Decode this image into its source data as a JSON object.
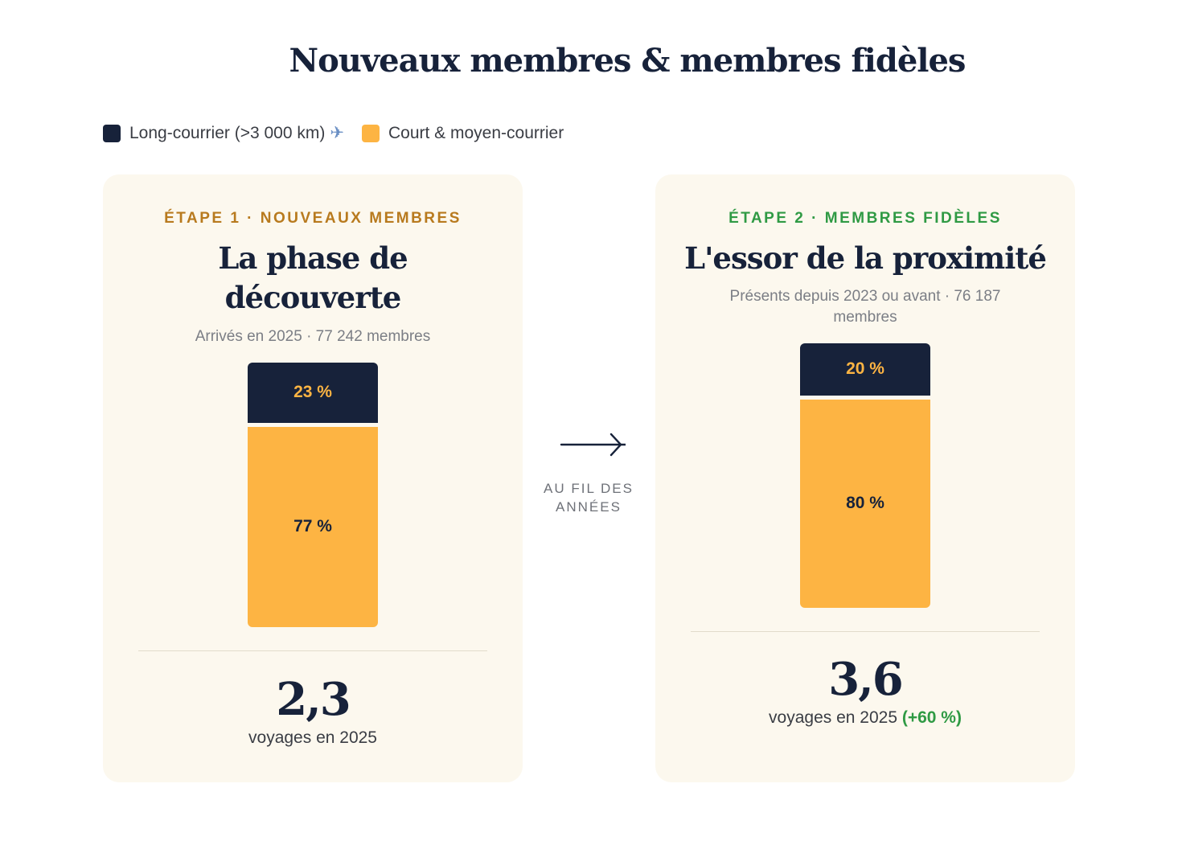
{
  "title": "Nouveaux membres & membres fidèles",
  "legend": [
    {
      "label": "Long-courrier (>3 000 km)",
      "icon": "airplane-icon",
      "color": "#17223a"
    },
    {
      "label": "Court & moyen-courrier",
      "color": "#fdb443"
    }
  ],
  "colors": {
    "long_haul": "#17223a",
    "short_haul": "#fdb443",
    "long_label": "#fdb443",
    "short_label": "#17223a",
    "stage1_accent": "#b87a1e",
    "stage2_accent": "#2f9a44"
  },
  "transition": {
    "label": "AU FIL DES ANNÉES",
    "icon": "arrow-right-icon"
  },
  "chart_data": [
    {
      "type": "bar",
      "stacked": true,
      "eyebrow": "ÉTAPE 1 · NOUVEAUX MEMBRES",
      "title": "La phase de découverte",
      "subtitle": "Arrivés en 2025 · 77 242 membres",
      "series": [
        {
          "name": "Long-courrier (>3 000 km)",
          "value": 23,
          "label": "23 %"
        },
        {
          "name": "Court & moyen-courrier",
          "value": 77,
          "label": "77 %"
        }
      ],
      "metric": {
        "value": "2,3",
        "label": "voyages en 2025",
        "delta": ""
      }
    },
    {
      "type": "bar",
      "stacked": true,
      "eyebrow": "ÉTAPE 2 · MEMBRES FIDÈLES",
      "title": "L'essor de la proximité",
      "subtitle": "Présents depuis 2023 ou avant · 76 187 membres",
      "series": [
        {
          "name": "Long-courrier (>3 000 km)",
          "value": 20,
          "label": "20 %"
        },
        {
          "name": "Court & moyen-courrier",
          "value": 80,
          "label": "80 %"
        }
      ],
      "metric": {
        "value": "3,6",
        "label": "voyages en 2025",
        "delta": "(+60 %)"
      }
    }
  ]
}
